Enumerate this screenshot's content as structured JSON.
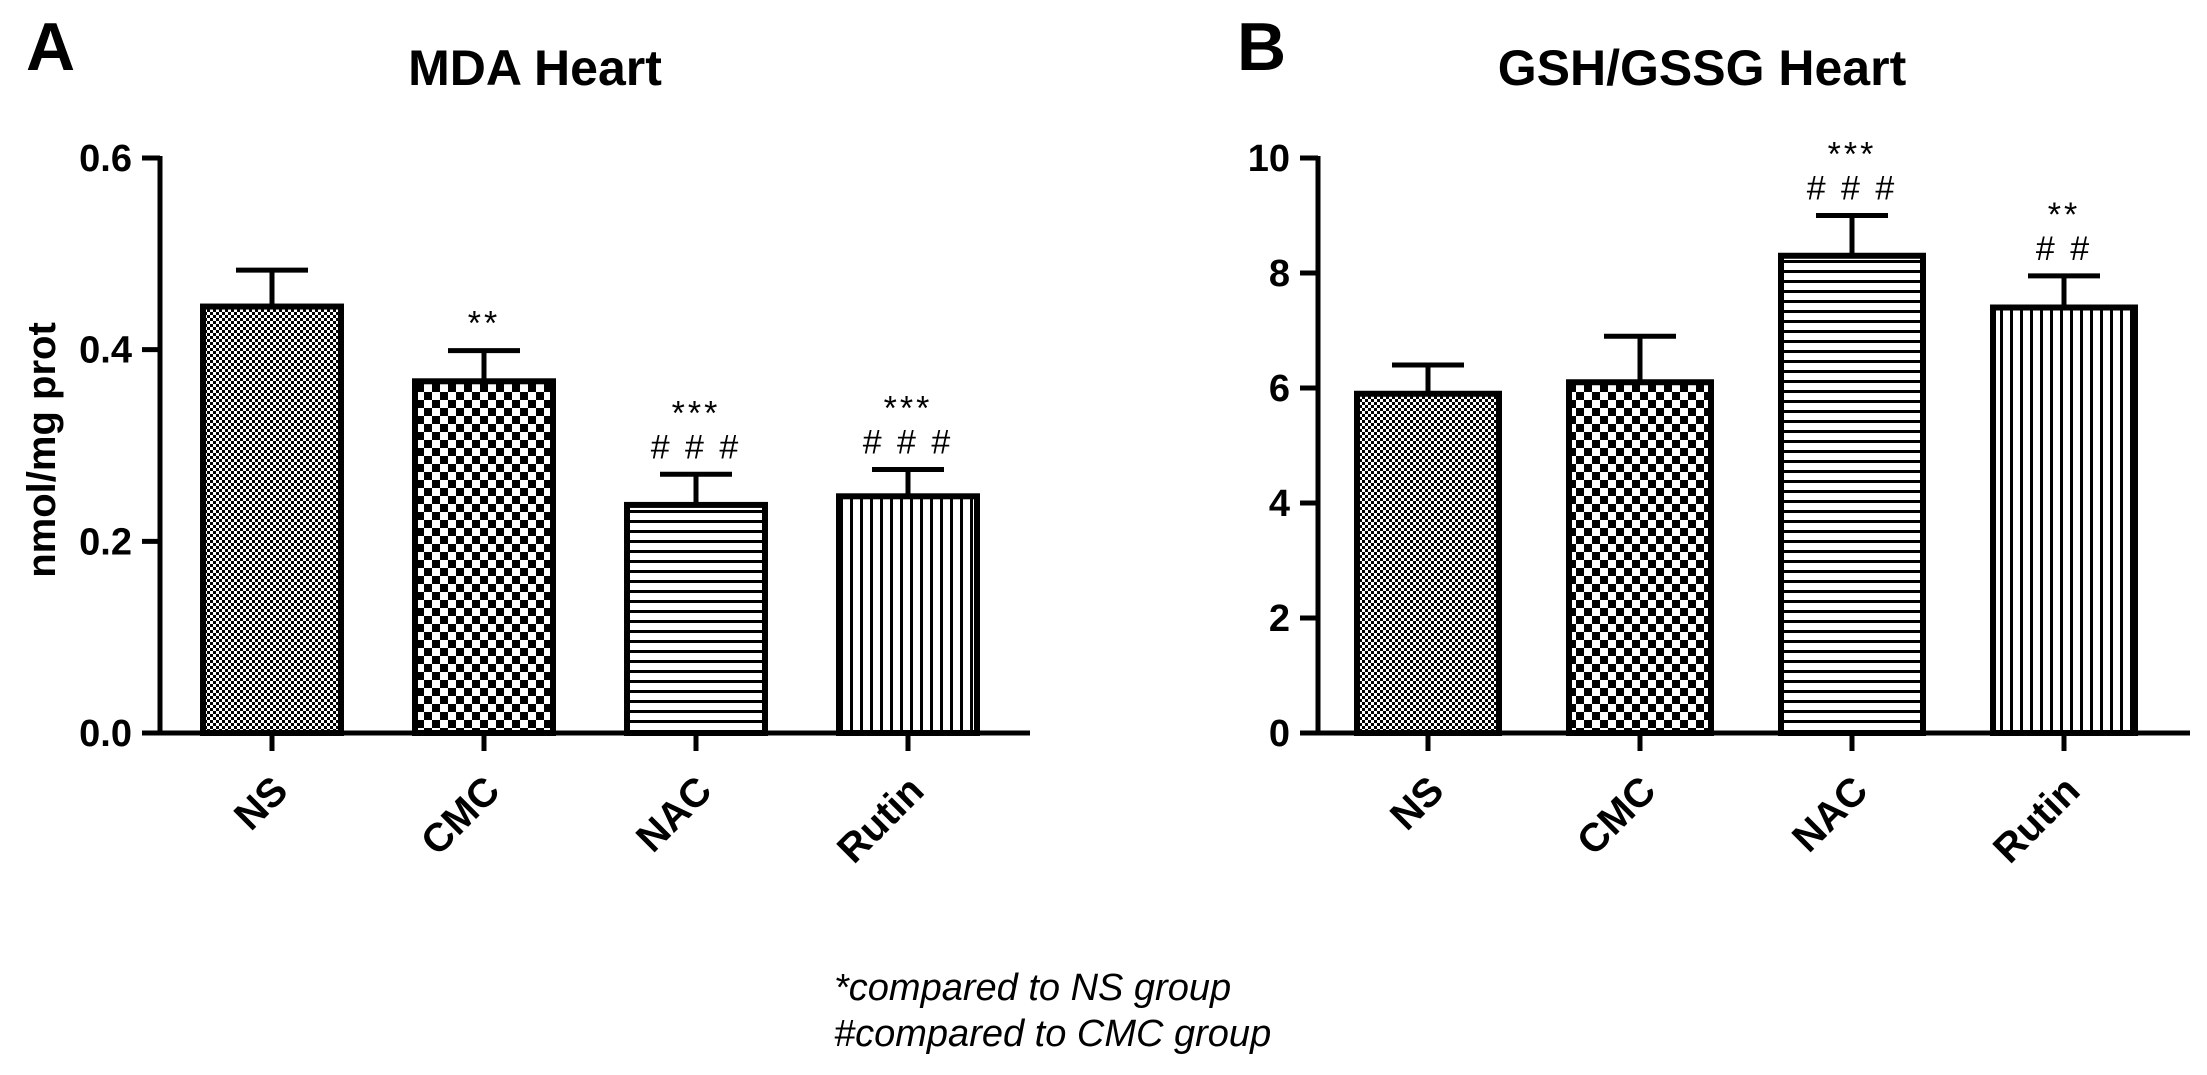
{
  "chart_data": [
    {
      "type": "bar",
      "panel": "A",
      "title": "MDA Heart",
      "xlabel": "",
      "ylabel": "nmol/mg prot",
      "ylim": [
        0,
        0.6
      ],
      "yticks": [
        "0.0",
        "0.2",
        "0.4",
        "0.6"
      ],
      "categories": [
        "NS",
        "CMC",
        "NAC",
        "Rutin"
      ],
      "values": [
        0.445,
        0.367,
        0.238,
        0.247
      ],
      "errors": [
        0.038,
        0.032,
        0.032,
        0.028
      ],
      "significance": [
        {
          "stars": "",
          "hashes": ""
        },
        {
          "stars": "**",
          "hashes": ""
        },
        {
          "stars": "***",
          "hashes": "###"
        },
        {
          "stars": "***",
          "hashes": "###"
        }
      ]
    },
    {
      "type": "bar",
      "panel": "B",
      "title": "GSH/GSSG Heart",
      "xlabel": "",
      "ylabel": "",
      "ylim": [
        0,
        10
      ],
      "yticks": [
        "0",
        "2",
        "4",
        "6",
        "8",
        "10"
      ],
      "categories": [
        "NS",
        "CMC",
        "NAC",
        "Rutin"
      ],
      "values": [
        5.9,
        6.1,
        8.3,
        7.4
      ],
      "errors": [
        0.5,
        0.8,
        0.7,
        0.55
      ],
      "significance": [
        {
          "stars": "",
          "hashes": ""
        },
        {
          "stars": "",
          "hashes": ""
        },
        {
          "stars": "***",
          "hashes": "###"
        },
        {
          "stars": "**",
          "hashes": "##"
        }
      ]
    }
  ],
  "footnote": {
    "line1": "*compared to NS group",
    "line2": "#compared to CMC group"
  }
}
